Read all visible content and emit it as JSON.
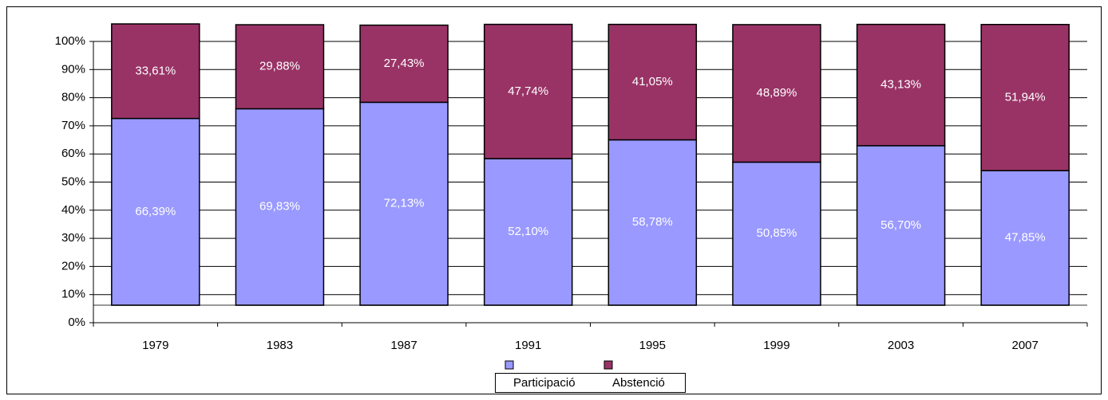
{
  "chart_data": {
    "type": "stacked_bar",
    "categories": [
      "1979",
      "1983",
      "1987",
      "1991",
      "1995",
      "1999",
      "2003",
      "2007"
    ],
    "series": [
      {
        "name": "Participació",
        "color": "#9999ff",
        "label_color": "#ffffff",
        "values": [
          66.39,
          69.83,
          72.13,
          52.1,
          58.78,
          50.85,
          56.7,
          47.85
        ],
        "value_labels": [
          "66,39%",
          "69,83%",
          "72,13%",
          "52,10%",
          "58,78%",
          "50,85%",
          "56,70%",
          "47,85%"
        ]
      },
      {
        "name": "Abstenció",
        "color": "#993366",
        "label_color": "#ffffff",
        "values": [
          33.61,
          29.88,
          27.43,
          47.74,
          41.05,
          48.89,
          43.13,
          51.94
        ],
        "value_labels": [
          "33,61%",
          "29,88%",
          "27,43%",
          "47,74%",
          "41,05%",
          "48,89%",
          "43,13%",
          "51,94%"
        ]
      }
    ],
    "ylim": [
      0,
      100
    ],
    "yticks": [
      {
        "value": 0,
        "label": "0%"
      },
      {
        "value": 10,
        "label": "10%"
      },
      {
        "value": 20,
        "label": "20%"
      },
      {
        "value": 30,
        "label": "30%"
      },
      {
        "value": 40,
        "label": "40%"
      },
      {
        "value": 50,
        "label": "50%"
      },
      {
        "value": 60,
        "label": "60%"
      },
      {
        "value": 70,
        "label": "70%"
      },
      {
        "value": 80,
        "label": "80%"
      },
      {
        "value": 90,
        "label": "90%"
      },
      {
        "value": 100,
        "label": "100%"
      }
    ],
    "grid": true,
    "legend": "bottom"
  }
}
